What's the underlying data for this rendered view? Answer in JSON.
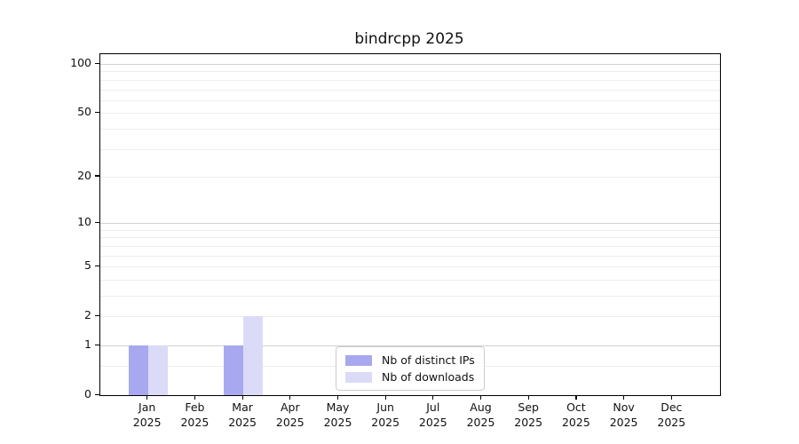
{
  "chart_data": {
    "type": "bar",
    "title": "bindrcpp 2025",
    "categories": [
      "Jan",
      "Feb",
      "Mar",
      "Apr",
      "May",
      "Jun",
      "Jul",
      "Aug",
      "Sep",
      "Oct",
      "Nov",
      "Dec"
    ],
    "year": "2025",
    "series": [
      {
        "name": "Nb of distinct IPs",
        "color": "#a8a8f0",
        "values": [
          1,
          0,
          1,
          0,
          0,
          0,
          0,
          0,
          0,
          0,
          0,
          0
        ]
      },
      {
        "name": "Nb of downloads",
        "color": "#dbdbf8",
        "values": [
          1,
          0,
          2,
          0,
          0,
          0,
          0,
          0,
          0,
          0,
          0,
          0
        ]
      }
    ],
    "y_scale": "log1p",
    "ylim": [
      0,
      115
    ],
    "y_ticks_labeled": [
      0,
      1,
      2,
      5,
      10,
      20,
      50,
      100
    ],
    "y_ticks_major": [
      1,
      10,
      100
    ],
    "y_ticks_minor": [
      0.5,
      2,
      3,
      4,
      5,
      6,
      7,
      8,
      9,
      20,
      30,
      40,
      50,
      60,
      70,
      80,
      90
    ],
    "grid": "on",
    "legend_position": "inside-bottom-center",
    "colors": {
      "background": "#ffffff",
      "spine": "#000000",
      "major_grid": "#d2d2d2",
      "minor_grid": "#ededed",
      "text": "#111111",
      "legend_border": "#cccccc"
    }
  }
}
